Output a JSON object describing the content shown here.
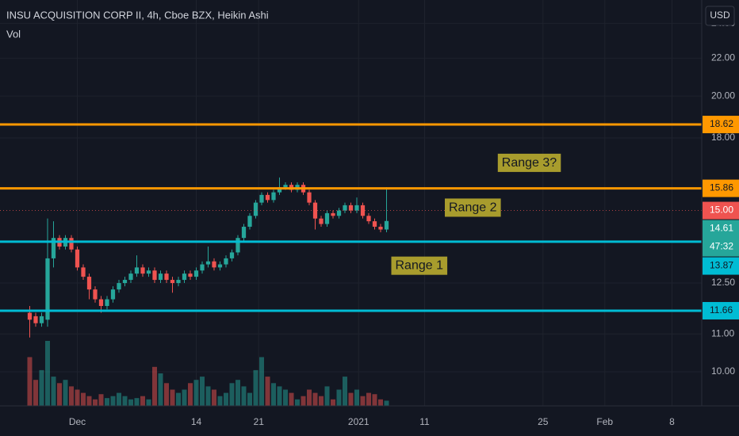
{
  "chart_data": {
    "type": "candlestick",
    "title": "INSU ACQUISITION CORP II, 4h, Cboe BZX, Heikin Ashi",
    "volume_label": "Vol",
    "currency": "USD",
    "countdown": "47:32",
    "log_scale": true,
    "grid": true,
    "up_color": "#26a69a",
    "down_color": "#ef5350",
    "open": [
      11.6,
      11.5,
      11.3,
      11.4,
      13.3,
      14.0,
      13.7,
      14.0,
      13.6,
      13.0,
      12.7,
      12.3,
      12.0,
      11.8,
      12.0,
      12.3,
      12.5,
      12.6,
      12.8,
      13.0,
      12.8,
      12.9,
      12.6,
      12.8,
      12.6,
      12.5,
      12.6,
      12.8,
      12.7,
      12.9,
      13.1,
      13.2,
      13.0,
      13.1,
      13.3,
      13.5,
      14.0,
      14.4,
      14.8,
      15.3,
      15.6,
      15.4,
      15.7,
      15.9,
      16.0,
      15.8,
      16.0,
      15.7,
      15.3,
      14.7,
      14.5,
      14.9,
      14.8,
      15.0,
      15.2,
      15.0,
      15.2,
      14.8,
      14.6,
      14.4,
      14.3
    ],
    "high": [
      11.8,
      11.6,
      11.6,
      14.7,
      14.6,
      14.1,
      14.1,
      14.1,
      13.7,
      13.1,
      12.8,
      12.4,
      12.1,
      12.1,
      12.4,
      12.6,
      12.7,
      12.9,
      13.4,
      13.1,
      13.0,
      13.0,
      12.9,
      12.9,
      12.7,
      12.7,
      12.9,
      12.9,
      13.0,
      13.2,
      13.7,
      13.3,
      13.2,
      13.4,
      13.6,
      14.1,
      14.5,
      14.9,
      15.4,
      15.7,
      15.7,
      15.8,
      16.3,
      16.1,
      16.1,
      16.1,
      16.1,
      15.8,
      15.4,
      14.8,
      15.0,
      15.0,
      15.1,
      15.3,
      15.3,
      15.5,
      15.3,
      14.9,
      14.7,
      14.5,
      15.9
    ],
    "low": [
      10.9,
      11.2,
      11.2,
      11.2,
      13.0,
      13.6,
      13.6,
      13.5,
      12.9,
      12.6,
      12.0,
      11.9,
      11.6,
      11.7,
      11.9,
      12.2,
      12.4,
      12.5,
      12.7,
      12.7,
      12.7,
      12.5,
      12.5,
      12.5,
      12.2,
      12.4,
      12.5,
      12.6,
      12.6,
      12.8,
      13.0,
      12.9,
      12.9,
      13.0,
      13.2,
      13.4,
      13.9,
      14.3,
      14.7,
      15.2,
      15.3,
      15.3,
      15.6,
      15.8,
      15.7,
      15.7,
      15.6,
      15.2,
      14.3,
      14.4,
      14.4,
      14.7,
      14.7,
      14.9,
      14.9,
      14.9,
      14.7,
      14.5,
      14.3,
      14.2,
      14.2
    ],
    "close": [
      11.4,
      11.3,
      11.5,
      13.3,
      14.0,
      13.7,
      14.0,
      13.6,
      13.0,
      12.7,
      12.3,
      12.0,
      11.8,
      12.0,
      12.3,
      12.5,
      12.6,
      12.8,
      13.0,
      12.8,
      12.9,
      12.6,
      12.8,
      12.6,
      12.5,
      12.6,
      12.8,
      12.7,
      12.9,
      13.1,
      13.2,
      13.0,
      13.1,
      13.3,
      13.5,
      14.0,
      14.4,
      14.8,
      15.3,
      15.6,
      15.4,
      15.7,
      15.9,
      16.0,
      15.8,
      16.0,
      15.7,
      15.3,
      14.7,
      14.5,
      14.9,
      14.8,
      15.0,
      15.2,
      15.0,
      15.2,
      14.8,
      14.6,
      14.4,
      14.3,
      14.61
    ],
    "volume": [
      75,
      40,
      55,
      100,
      45,
      35,
      40,
      30,
      25,
      20,
      15,
      10,
      18,
      12,
      15,
      20,
      15,
      10,
      12,
      15,
      10,
      60,
      50,
      35,
      25,
      20,
      25,
      35,
      40,
      45,
      30,
      25,
      15,
      20,
      35,
      40,
      30,
      20,
      55,
      75,
      45,
      35,
      30,
      25,
      20,
      10,
      15,
      25,
      20,
      15,
      30,
      10,
      25,
      45,
      20,
      25,
      15,
      20,
      18,
      10,
      8
    ],
    "xlim": [
      -5,
      113
    ],
    "xticks": [
      {
        "value": 8,
        "label": "Dec"
      },
      {
        "value": 28,
        "label": "14"
      },
      {
        "value": 38.5,
        "label": "21"
      },
      {
        "value": 55.3,
        "label": "2021"
      },
      {
        "value": 66.4,
        "label": "11"
      },
      {
        "value": 86.3,
        "label": "25"
      },
      {
        "value": 96.7,
        "label": "Feb"
      },
      {
        "value": 108,
        "label": "8"
      }
    ],
    "ylim": [
      9.18,
      25.46
    ],
    "yticks": [
      {
        "value": 10,
        "label": "10.00"
      },
      {
        "value": 11,
        "label": "11.00"
      },
      {
        "value": 12.5,
        "label": "12.50"
      },
      {
        "value": 18,
        "label": "18.00"
      },
      {
        "value": 20,
        "label": "20.00"
      },
      {
        "value": 22,
        "label": "22.00"
      },
      {
        "value": 24,
        "label": "24.00"
      }
    ],
    "levels": [
      {
        "value": 18.62,
        "color": "#ff9800"
      },
      {
        "value": 15.86,
        "color": "#ff9800"
      },
      {
        "value": 13.87,
        "color": "#00bcd4"
      },
      {
        "value": 11.66,
        "color": "#00bcd4"
      }
    ],
    "last_price": {
      "value": 15,
      "label": "15.00",
      "color": "#ef5350"
    },
    "current_close": {
      "value": 14.61,
      "color": "#26a69a"
    },
    "annotations": [
      {
        "text": "Range 3?",
        "x": 84,
        "y": 16.9
      },
      {
        "text": "Range 2",
        "x": 74.5,
        "y": 15.1
      },
      {
        "text": "Range 1",
        "x": 65.5,
        "y": 13.05
      }
    ]
  }
}
